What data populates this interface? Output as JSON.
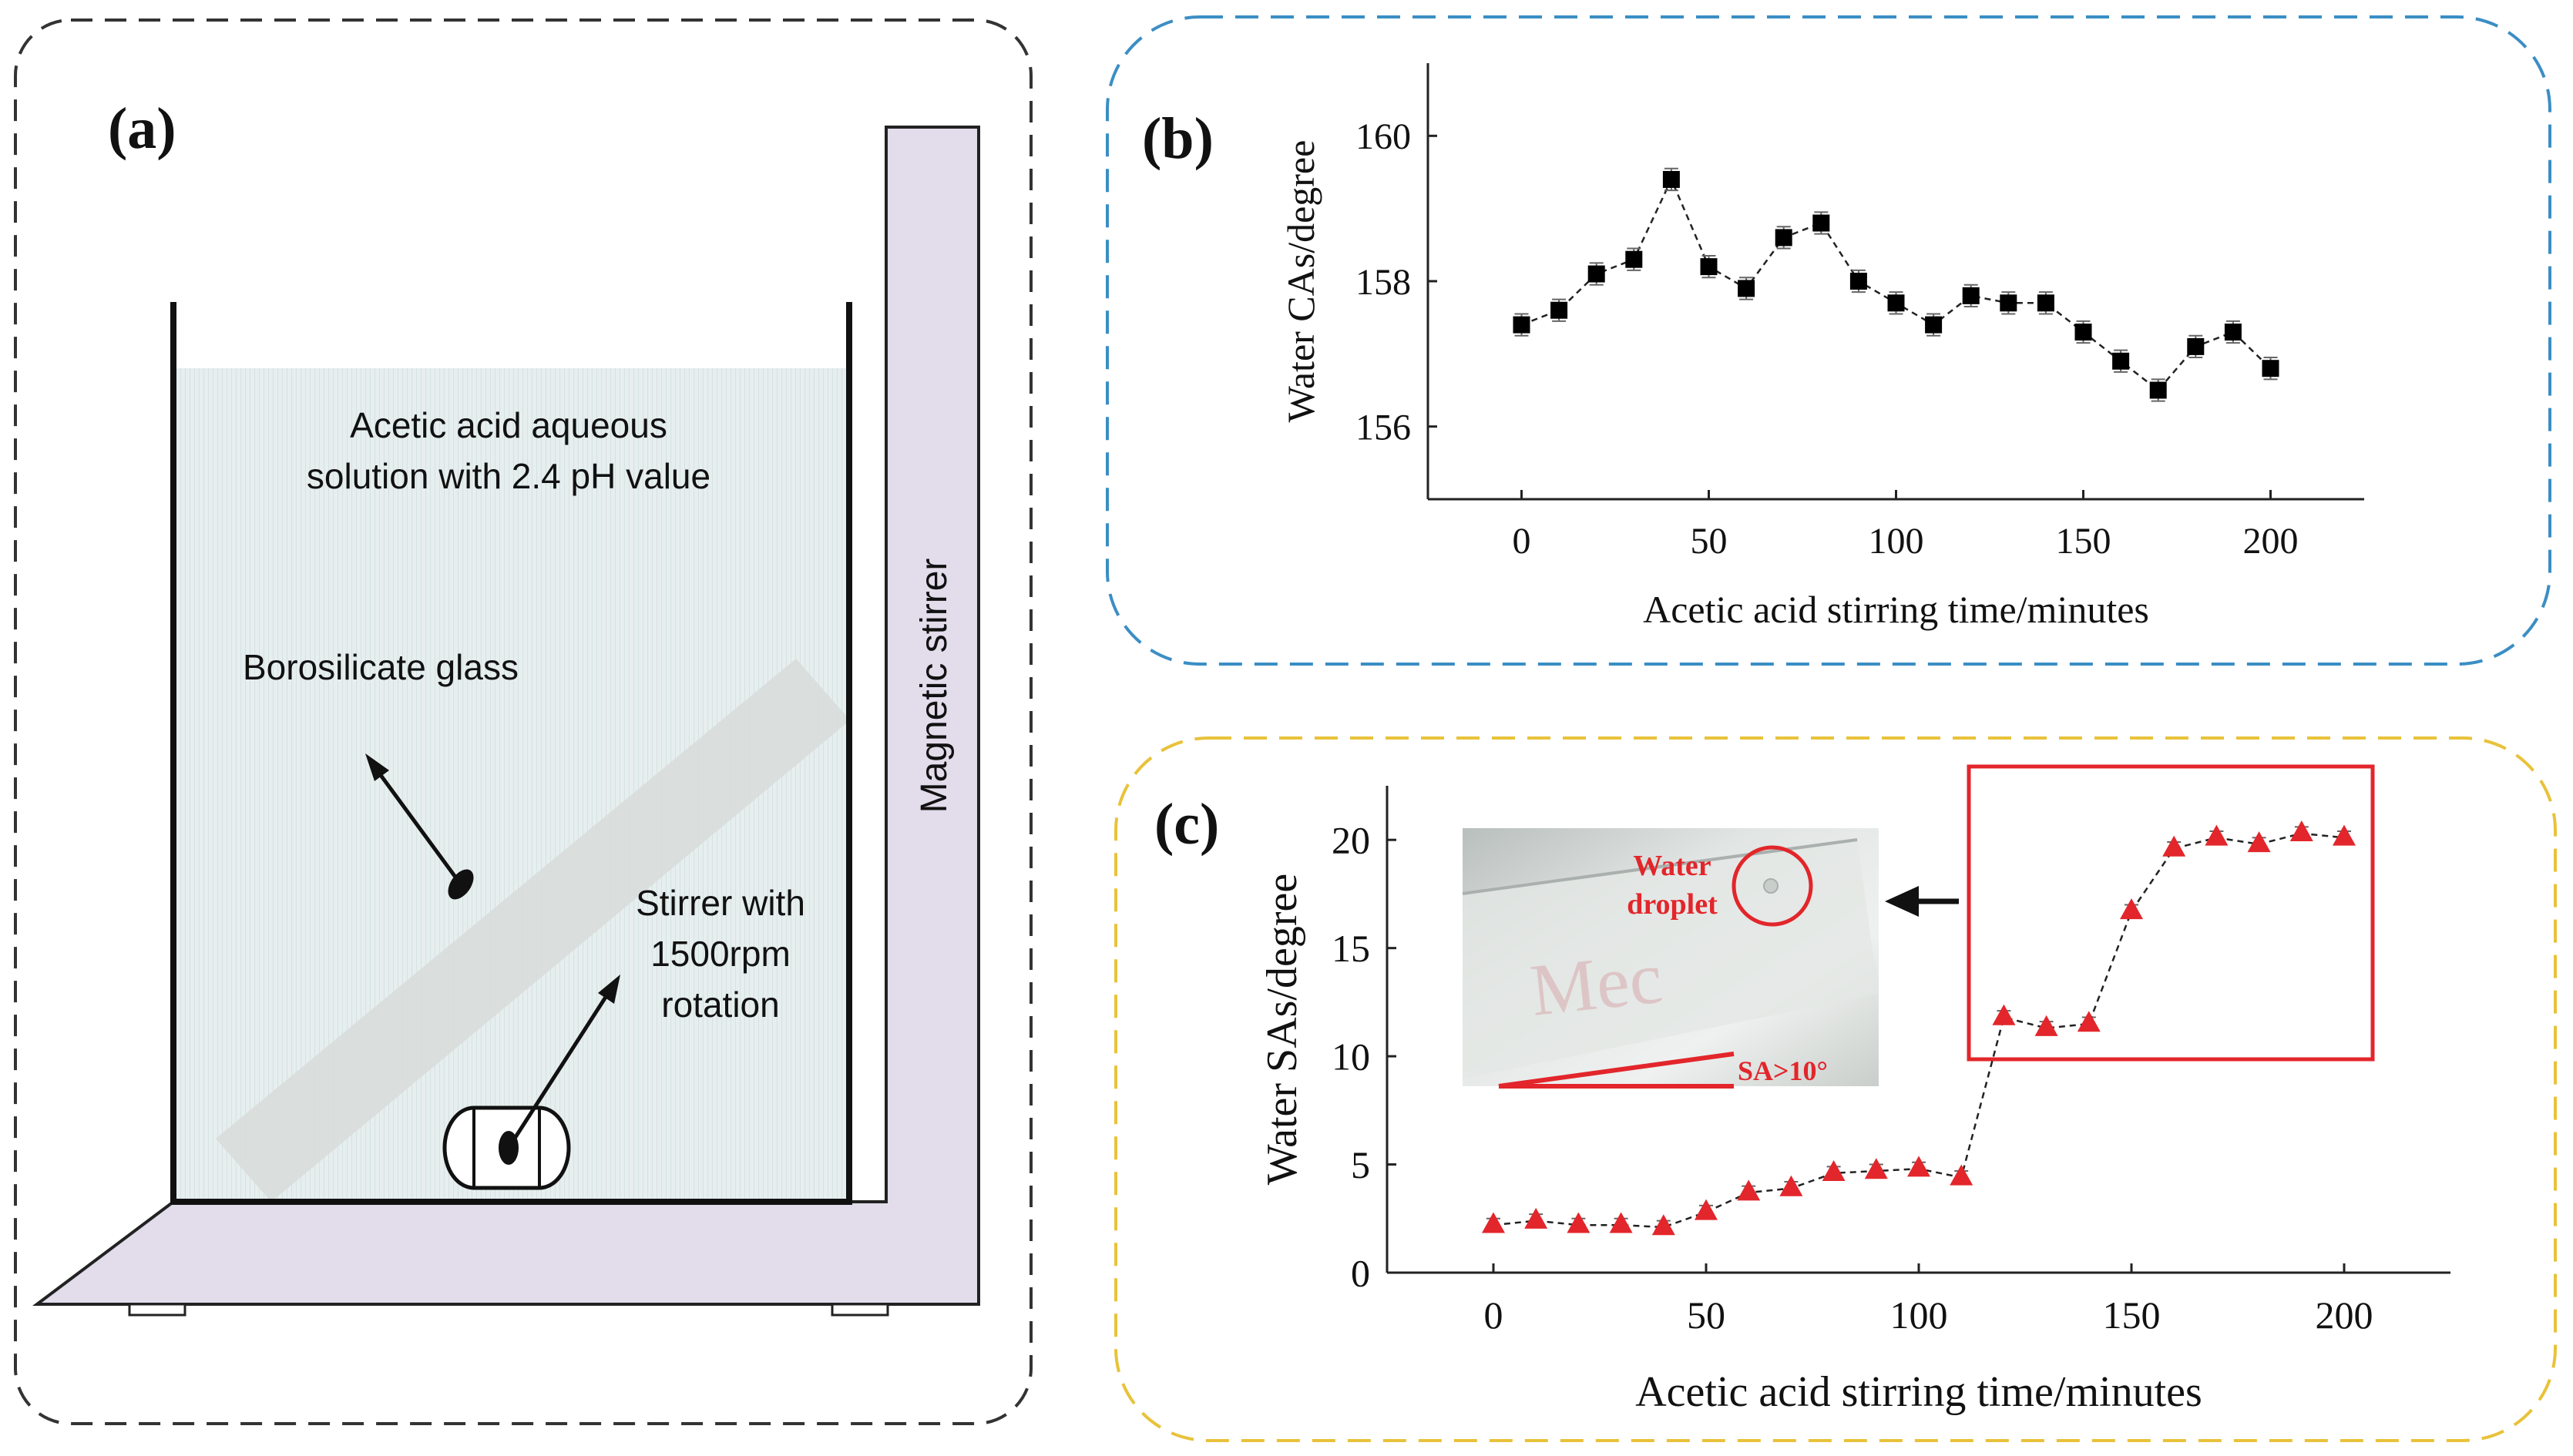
{
  "panel_a": {
    "label": "(a)",
    "solution_line1": "Acetic acid aqueous",
    "solution_line2": "solution with 2.4 pH value",
    "glass_label": "Borosilicate glass",
    "stirrer_line1": "Stirrer with",
    "stirrer_line2": "1500rpm",
    "stirrer_line3": "rotation",
    "magnetic_label": "Magnetic stirrer",
    "colors": {
      "liquid": "#e8f0f0",
      "base": "#e2dceb",
      "glass": "#d9dcda",
      "frame": "#444444"
    }
  },
  "panel_b": {
    "label": "(b)",
    "frame_color": "#3b8ec4"
  },
  "panel_c": {
    "label": "(c)",
    "frame_color": "#e8c23a",
    "inset_text_line1": "Water",
    "inset_text_line2": "droplet",
    "inset_angle_label": "SA>10°",
    "inset_watermark": "Mec",
    "highlight_color": "#e2262b"
  },
  "chart_data": [
    {
      "type": "line",
      "panel": "b",
      "title": "",
      "xlabel": "Acetic acid stirring time/minutes",
      "ylabel": "Water CAs/degree",
      "xlim": [
        -25,
        225
      ],
      "ylim": [
        155,
        161
      ],
      "xticks": [
        0,
        50,
        100,
        150,
        200
      ],
      "yticks": [
        156,
        158,
        160
      ],
      "marker": "square",
      "color": "#000000",
      "x": [
        0,
        10,
        20,
        30,
        40,
        50,
        60,
        70,
        80,
        90,
        100,
        110,
        120,
        130,
        140,
        150,
        160,
        170,
        180,
        190,
        200
      ],
      "values": [
        157.4,
        157.6,
        158.1,
        158.3,
        159.4,
        158.2,
        157.9,
        158.6,
        158.8,
        158.0,
        157.7,
        157.4,
        157.8,
        157.7,
        157.7,
        157.3,
        156.9,
        156.5,
        157.1,
        157.3,
        156.8
      ],
      "error": 0.15
    },
    {
      "type": "line",
      "panel": "c",
      "title": "",
      "xlabel": "Acetic acid stirring time/minutes",
      "ylabel": "Water SAs/degree",
      "xlim": [
        -25,
        225
      ],
      "ylim": [
        0,
        22.5
      ],
      "xticks": [
        0,
        50,
        100,
        150,
        200
      ],
      "yticks": [
        0,
        5,
        10,
        15,
        20
      ],
      "marker": "triangle",
      "color": "#e2262b",
      "x": [
        0,
        10,
        20,
        30,
        40,
        50,
        60,
        70,
        80,
        90,
        100,
        110,
        120,
        130,
        140,
        150,
        160,
        170,
        180,
        190,
        200
      ],
      "values": [
        2.2,
        2.4,
        2.2,
        2.2,
        2.1,
        2.8,
        3.7,
        3.9,
        4.6,
        4.7,
        4.8,
        4.4,
        11.8,
        11.3,
        11.5,
        16.7,
        19.6,
        20.1,
        19.8,
        20.3,
        20.1
      ],
      "error": 0.3
    }
  ]
}
